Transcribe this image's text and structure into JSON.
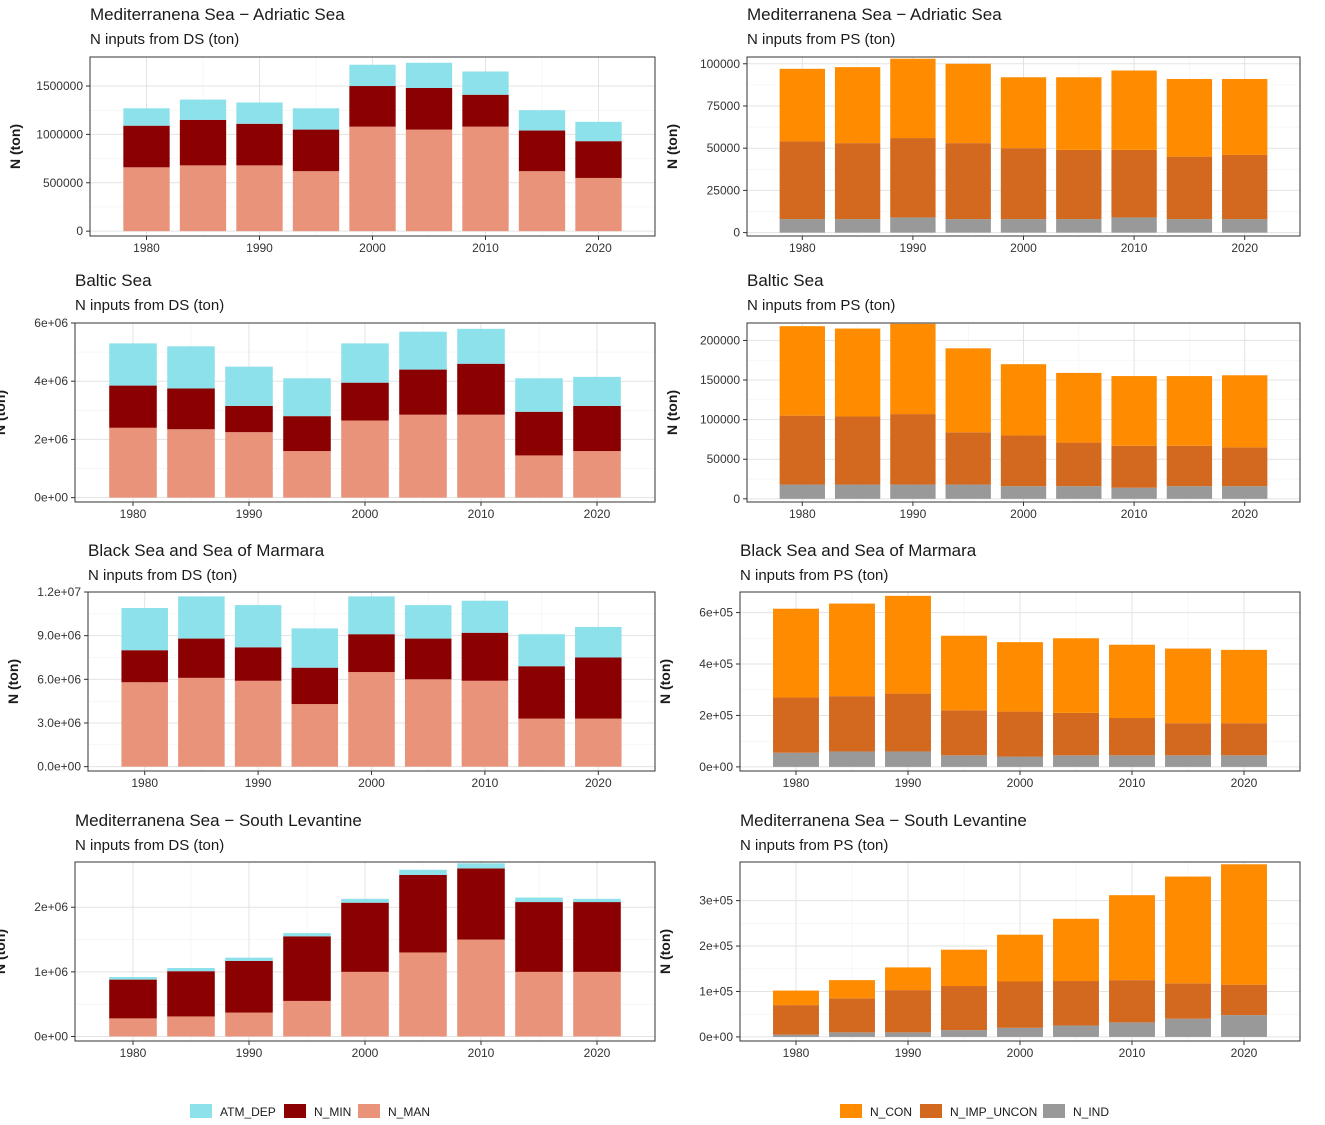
{
  "colors": {
    "ATM_DEP": "#8de1ea",
    "N_MIN": "#8b0000",
    "N_MAN": "#e8937a",
    "N_CON": "#ff8c00",
    "N_IMP_UNCON": "#d2691e",
    "N_IND": "#999999"
  },
  "legends": {
    "ds": [
      "ATM_DEP",
      "N_MIN",
      "N_MAN"
    ],
    "ps": [
      "N_CON",
      "N_IMP_UNCON",
      "N_IND"
    ]
  },
  "chart_data": [
    {
      "type": "bar",
      "stacked": true,
      "title": "Mediterranena Sea − Adriatic Sea",
      "subtitle": "N inputs from DS (ton)",
      "ylabel": "N (ton)",
      "x": [
        1980,
        1985,
        1990,
        1995,
        2000,
        2005,
        2010,
        2015,
        2020
      ],
      "xticks": [
        "1980",
        "1990",
        "2000",
        "2010",
        "2020"
      ],
      "xlim": [
        1975,
        2025
      ],
      "ylim": [
        -50000,
        1800000
      ],
      "yticks": [
        0,
        500000,
        1000000,
        1500000
      ],
      "ytick_labels": [
        "0",
        "500000",
        "1000000",
        "1500000"
      ],
      "series": [
        {
          "name": "N_MAN",
          "values": [
            660000,
            680000,
            680000,
            620000,
            1080000,
            1050000,
            1080000,
            620000,
            550000
          ]
        },
        {
          "name": "N_MIN",
          "values": [
            430000,
            470000,
            430000,
            430000,
            420000,
            430000,
            330000,
            420000,
            380000
          ]
        },
        {
          "name": "ATM_DEP",
          "values": [
            180000,
            210000,
            220000,
            220000,
            220000,
            260000,
            240000,
            210000,
            200000
          ]
        }
      ]
    },
    {
      "type": "bar",
      "stacked": true,
      "title": "Mediterranena Sea − Adriatic Sea",
      "subtitle": "N inputs from PS (ton)",
      "ylabel": "N (ton)",
      "x": [
        1980,
        1985,
        1990,
        1995,
        2000,
        2005,
        2010,
        2015,
        2020
      ],
      "xticks": [
        "1980",
        "1990",
        "2000",
        "2010",
        "2020"
      ],
      "xlim": [
        1975,
        2025
      ],
      "ylim": [
        -2000,
        104000
      ],
      "yticks": [
        0,
        25000,
        50000,
        75000,
        100000
      ],
      "ytick_labels": [
        "0",
        "25000",
        "50000",
        "75000",
        "100000"
      ],
      "series": [
        {
          "name": "N_IND",
          "values": [
            8000,
            8000,
            9000,
            8000,
            8000,
            8000,
            9000,
            8000,
            8000
          ]
        },
        {
          "name": "N_IMP_UNCON",
          "values": [
            46000,
            45000,
            47000,
            45000,
            42000,
            41000,
            40000,
            37000,
            38000
          ]
        },
        {
          "name": "N_CON",
          "values": [
            43000,
            45000,
            47000,
            47000,
            42000,
            43000,
            47000,
            46000,
            45000
          ]
        }
      ]
    },
    {
      "type": "bar",
      "stacked": true,
      "title": "Baltic Sea",
      "subtitle": "N inputs from DS (ton)",
      "ylabel": "N (ton)",
      "x": [
        1980,
        1985,
        1990,
        1995,
        2000,
        2005,
        2010,
        2015,
        2020
      ],
      "xticks": [
        "1980",
        "1990",
        "2000",
        "2010",
        "2020"
      ],
      "xlim": [
        1975,
        2025
      ],
      "ylim": [
        -150000,
        6000000
      ],
      "yticks": [
        0,
        2000000,
        4000000,
        6000000
      ],
      "ytick_labels": [
        "0e+00",
        "2e+06",
        "4e+06",
        "6e+06"
      ],
      "series": [
        {
          "name": "N_MAN",
          "values": [
            2400000,
            2350000,
            2250000,
            1600000,
            2650000,
            2850000,
            2850000,
            1450000,
            1600000
          ]
        },
        {
          "name": "N_MIN",
          "values": [
            1450000,
            1400000,
            900000,
            1200000,
            1300000,
            1550000,
            1750000,
            1500000,
            1550000
          ]
        },
        {
          "name": "ATM_DEP",
          "values": [
            1450000,
            1450000,
            1350000,
            1300000,
            1350000,
            1300000,
            1200000,
            1150000,
            1000000
          ]
        }
      ]
    },
    {
      "type": "bar",
      "stacked": true,
      "title": "Baltic Sea",
      "subtitle": "N inputs from PS (ton)",
      "ylabel": "N (ton)",
      "x": [
        1980,
        1985,
        1990,
        1995,
        2000,
        2005,
        2010,
        2015,
        2020
      ],
      "xticks": [
        "1980",
        "1990",
        "2000",
        "2010",
        "2020"
      ],
      "xlim": [
        1975,
        2025
      ],
      "ylim": [
        -4000,
        222000
      ],
      "yticks": [
        0,
        50000,
        100000,
        150000,
        200000
      ],
      "ytick_labels": [
        "0",
        "50000",
        "100000",
        "150000",
        "200000"
      ],
      "series": [
        {
          "name": "N_IND",
          "values": [
            18000,
            18000,
            18000,
            18000,
            16000,
            16000,
            14000,
            16000,
            16000
          ]
        },
        {
          "name": "N_IMP_UNCON",
          "values": [
            87000,
            86000,
            89000,
            66000,
            64000,
            55000,
            53000,
            51000,
            49000
          ]
        },
        {
          "name": "N_CON",
          "values": [
            113000,
            111000,
            114000,
            106000,
            90000,
            88000,
            88000,
            88000,
            91000
          ]
        }
      ]
    },
    {
      "type": "bar",
      "stacked": true,
      "title": "Black Sea and Sea of Marmara",
      "subtitle": "N inputs from DS (ton)",
      "ylabel": "N (ton)",
      "x": [
        1980,
        1985,
        1990,
        1995,
        2000,
        2005,
        2010,
        2015,
        2020
      ],
      "xticks": [
        "1980",
        "1990",
        "2000",
        "2010",
        "2020"
      ],
      "xlim": [
        1975,
        2025
      ],
      "ylim": [
        -300000,
        12000000
      ],
      "yticks": [
        0,
        3000000,
        6000000,
        9000000,
        12000000
      ],
      "ytick_labels": [
        "0.0e+00",
        "3.0e+06",
        "6.0e+06",
        "9.0e+06",
        "1.2e+07"
      ],
      "series": [
        {
          "name": "N_MAN",
          "values": [
            5800000,
            6100000,
            5900000,
            4300000,
            6500000,
            6000000,
            5900000,
            3300000,
            3300000
          ]
        },
        {
          "name": "N_MIN",
          "values": [
            2200000,
            2700000,
            2300000,
            2500000,
            2600000,
            2800000,
            3300000,
            3600000,
            4200000
          ]
        },
        {
          "name": "ATM_DEP",
          "values": [
            2900000,
            2900000,
            2900000,
            2700000,
            2600000,
            2300000,
            2200000,
            2200000,
            2100000
          ]
        }
      ]
    },
    {
      "type": "bar",
      "stacked": true,
      "title": "Black Sea and Sea of Marmara",
      "subtitle": "N inputs from PS (ton)",
      "ylabel": "N (ton)",
      "x": [
        1980,
        1985,
        1990,
        1995,
        2000,
        2005,
        2010,
        2015,
        2020
      ],
      "xticks": [
        "1980",
        "1990",
        "2000",
        "2010",
        "2020"
      ],
      "xlim": [
        1975,
        2025
      ],
      "ylim": [
        -16000,
        680000
      ],
      "yticks": [
        0,
        200000,
        400000,
        600000
      ],
      "ytick_labels": [
        "0e+00",
        "2e+05",
        "4e+05",
        "6e+05"
      ],
      "series": [
        {
          "name": "N_IND",
          "values": [
            55000,
            60000,
            60000,
            45000,
            40000,
            45000,
            45000,
            45000,
            45000
          ]
        },
        {
          "name": "N_IMP_UNCON",
          "values": [
            215000,
            215000,
            225000,
            175000,
            175000,
            165000,
            145000,
            125000,
            125000
          ]
        },
        {
          "name": "N_CON",
          "values": [
            345000,
            360000,
            380000,
            290000,
            270000,
            290000,
            285000,
            290000,
            285000
          ]
        }
      ]
    },
    {
      "type": "bar",
      "stacked": true,
      "title": "Mediterranena Sea − South Levantine",
      "subtitle": "N inputs from DS (ton)",
      "ylabel": "N (ton)",
      "x": [
        1980,
        1985,
        1990,
        1995,
        2000,
        2005,
        2010,
        2015,
        2020
      ],
      "xticks": [
        "1980",
        "1990",
        "2000",
        "2010",
        "2020"
      ],
      "xlim": [
        1975,
        2025
      ],
      "ylim": [
        -70000,
        2700000
      ],
      "yticks": [
        0,
        1000000,
        2000000
      ],
      "ytick_labels": [
        "0e+00",
        "1e+06",
        "2e+06"
      ],
      "series": [
        {
          "name": "N_MAN",
          "values": [
            280000,
            310000,
            370000,
            550000,
            1000000,
            1300000,
            1500000,
            1000000,
            1000000
          ]
        },
        {
          "name": "N_MIN",
          "values": [
            600000,
            700000,
            800000,
            1000000,
            1070000,
            1200000,
            1100000,
            1080000,
            1080000
          ]
        },
        {
          "name": "ATM_DEP",
          "values": [
            40000,
            50000,
            50000,
            50000,
            60000,
            80000,
            80000,
            70000,
            50000
          ]
        }
      ]
    },
    {
      "type": "bar",
      "stacked": true,
      "title": "Mediterranena Sea − South Levantine",
      "subtitle": "N inputs from PS (ton)",
      "ylabel": "N (ton)",
      "x": [
        1980,
        1985,
        1990,
        1995,
        2000,
        2005,
        2010,
        2015,
        2020
      ],
      "xticks": [
        "1980",
        "1990",
        "2000",
        "2010",
        "2020"
      ],
      "xlim": [
        1975,
        2025
      ],
      "ylim": [
        -9000,
        385000
      ],
      "yticks": [
        0,
        100000,
        200000,
        300000
      ],
      "ytick_labels": [
        "0e+00",
        "1e+05",
        "2e+05",
        "3e+05"
      ],
      "series": [
        {
          "name": "N_IND",
          "values": [
            5000,
            10000,
            10000,
            15000,
            20000,
            25000,
            32000,
            40000,
            48000
          ]
        },
        {
          "name": "N_IMP_UNCON",
          "values": [
            65000,
            75000,
            93000,
            97000,
            102000,
            98000,
            93000,
            78000,
            67000
          ]
        },
        {
          "name": "N_CON",
          "values": [
            32000,
            40000,
            50000,
            80000,
            103000,
            137000,
            187000,
            235000,
            265000
          ]
        }
      ]
    }
  ]
}
